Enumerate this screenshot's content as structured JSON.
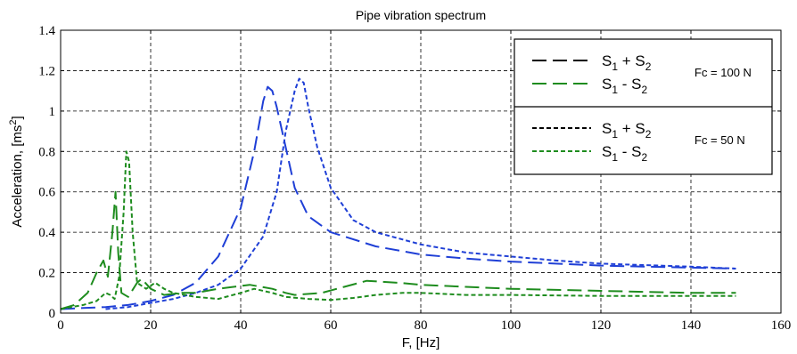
{
  "chart_data": {
    "type": "line",
    "title": "Pipe vibration spectrum",
    "xlabel": "F, [Hz]",
    "ylabel": "Acceleration, [ms",
    "ylabel_sup": "2",
    "ylabel_tail": "]",
    "xlim": [
      0,
      160
    ],
    "ylim": [
      0,
      1.4
    ],
    "xticks": [
      0,
      20,
      40,
      60,
      80,
      100,
      120,
      140,
      160
    ],
    "yticks": [
      0,
      0.2,
      0.4,
      0.6,
      0.8,
      1,
      1.2,
      1.4
    ],
    "xtick_labels": [
      "0",
      "20",
      "40",
      "60",
      "80",
      "100",
      "120",
      "140",
      "160"
    ],
    "ytick_labels": [
      "0",
      "0.2",
      "0.4",
      "0.6",
      "0.8",
      "1",
      "1.2",
      "1.4"
    ],
    "grid": true,
    "legend_position": "top-right",
    "legend": {
      "groups": [
        {
          "note": "Fc = 100 N",
          "entries": [
            {
              "main": "S",
              "sub1": "1",
              "op": " + S",
              "sub2": "2",
              "style": "long-dash",
              "color": "#000000"
            },
            {
              "main": "S",
              "sub1": "1",
              "op": " -  S",
              "sub2": "2",
              "style": "long-dash",
              "color": "#1e8c1e"
            }
          ]
        },
        {
          "note": "Fc = 50 N",
          "entries": [
            {
              "main": "S",
              "sub1": "1",
              "op": " + S",
              "sub2": "2",
              "style": "short-dash",
              "color": "#000000"
            },
            {
              "main": "S",
              "sub1": "1",
              "op": " -  S",
              "sub2": "2",
              "style": "short-dash",
              "color": "#1e8c1e"
            }
          ]
        }
      ]
    },
    "series": [
      {
        "color": "#1f3fd6",
        "style": "long-dash",
        "points": [
          [
            0,
            0.02
          ],
          [
            5,
            0.025
          ],
          [
            10,
            0.03
          ],
          [
            15,
            0.04
          ],
          [
            20,
            0.06
          ],
          [
            25,
            0.09
          ],
          [
            30,
            0.15
          ],
          [
            35,
            0.28
          ],
          [
            40,
            0.52
          ],
          [
            43,
            0.8
          ],
          [
            45,
            1.05
          ],
          [
            46,
            1.12
          ],
          [
            47,
            1.1
          ],
          [
            48,
            1.02
          ],
          [
            50,
            0.82
          ],
          [
            52,
            0.62
          ],
          [
            55,
            0.48
          ],
          [
            60,
            0.4
          ],
          [
            70,
            0.33
          ],
          [
            80,
            0.29
          ],
          [
            90,
            0.27
          ],
          [
            100,
            0.255
          ],
          [
            120,
            0.235
          ],
          [
            140,
            0.225
          ],
          [
            150,
            0.22
          ]
        ]
      },
      {
        "color": "#1f3fd6",
        "style": "short-dash",
        "points": [
          [
            10,
            0.02
          ],
          [
            15,
            0.03
          ],
          [
            20,
            0.05
          ],
          [
            25,
            0.07
          ],
          [
            30,
            0.1
          ],
          [
            35,
            0.14
          ],
          [
            40,
            0.22
          ],
          [
            45,
            0.38
          ],
          [
            48,
            0.6
          ],
          [
            50,
            0.9
          ],
          [
            52,
            1.1
          ],
          [
            53,
            1.16
          ],
          [
            54,
            1.14
          ],
          [
            55,
            1.02
          ],
          [
            57,
            0.82
          ],
          [
            60,
            0.62
          ],
          [
            65,
            0.46
          ],
          [
            70,
            0.4
          ],
          [
            80,
            0.34
          ],
          [
            90,
            0.3
          ],
          [
            100,
            0.28
          ],
          [
            110,
            0.26
          ],
          [
            120,
            0.245
          ],
          [
            140,
            0.23
          ],
          [
            150,
            0.22
          ]
        ]
      },
      {
        "color": "#1e8c1e",
        "style": "long-dash",
        "points": [
          [
            0,
            0.02
          ],
          [
            3,
            0.04
          ],
          [
            6,
            0.1
          ],
          [
            8,
            0.2
          ],
          [
            9.5,
            0.26
          ],
          [
            10.5,
            0.18
          ],
          [
            11.5,
            0.4
          ],
          [
            12.2,
            0.6
          ],
          [
            12.8,
            0.3
          ],
          [
            13.5,
            0.1
          ],
          [
            15,
            0.08
          ],
          [
            17,
            0.15
          ],
          [
            18,
            0.17
          ],
          [
            20,
            0.12
          ],
          [
            23,
            0.09
          ],
          [
            27,
            0.1
          ],
          [
            30,
            0.1
          ],
          [
            35,
            0.12
          ],
          [
            42,
            0.14
          ],
          [
            47,
            0.12
          ],
          [
            50,
            0.1
          ],
          [
            52,
            0.09
          ],
          [
            58,
            0.1
          ],
          [
            63,
            0.13
          ],
          [
            68,
            0.16
          ],
          [
            75,
            0.15
          ],
          [
            80,
            0.14
          ],
          [
            90,
            0.13
          ],
          [
            100,
            0.12
          ],
          [
            120,
            0.11
          ],
          [
            140,
            0.1
          ],
          [
            150,
            0.1
          ]
        ]
      },
      {
        "color": "#1e8c1e",
        "style": "short-dash",
        "points": [
          [
            0,
            0.02
          ],
          [
            5,
            0.04
          ],
          [
            8,
            0.06
          ],
          [
            10,
            0.1
          ],
          [
            11,
            0.09
          ],
          [
            12,
            0.07
          ],
          [
            13,
            0.18
          ],
          [
            14,
            0.5
          ],
          [
            14.6,
            0.8
          ],
          [
            15.2,
            0.75
          ],
          [
            16,
            0.4
          ],
          [
            17,
            0.15
          ],
          [
            19,
            0.12
          ],
          [
            21,
            0.15
          ],
          [
            23,
            0.12
          ],
          [
            25,
            0.1
          ],
          [
            30,
            0.08
          ],
          [
            35,
            0.07
          ],
          [
            40,
            0.1
          ],
          [
            43,
            0.12
          ],
          [
            47,
            0.1
          ],
          [
            50,
            0.08
          ],
          [
            55,
            0.07
          ],
          [
            60,
            0.065
          ],
          [
            65,
            0.075
          ],
          [
            70,
            0.09
          ],
          [
            76,
            0.1
          ],
          [
            80,
            0.1
          ],
          [
            90,
            0.09
          ],
          [
            100,
            0.09
          ],
          [
            120,
            0.085
          ],
          [
            150,
            0.085
          ]
        ]
      }
    ]
  }
}
